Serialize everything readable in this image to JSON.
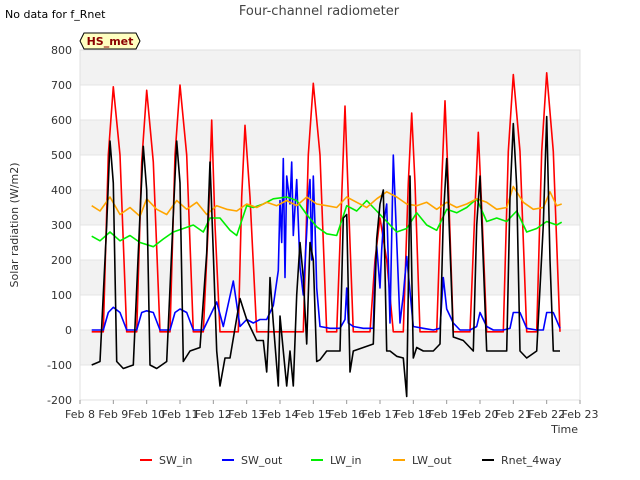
{
  "note": "No data for f_Rnet",
  "badge": "HS_met",
  "chart_data": {
    "type": "line",
    "title": "Four-channel radiometer",
    "xlabel": "Time",
    "ylabel": "Solar radiation (W/m2)",
    "ylim": [
      -200,
      800
    ],
    "xlim": [
      8,
      23
    ],
    "grid": "horizontal bands",
    "legend_position": "bottom",
    "y_ticks": [
      -200,
      -100,
      0,
      100,
      200,
      300,
      400,
      500,
      600,
      700,
      800
    ],
    "x_ticks": [
      {
        "value": 8,
        "label": "Feb 8"
      },
      {
        "value": 9,
        "label": "Feb 9"
      },
      {
        "value": 10,
        "label": "Feb 10"
      },
      {
        "value": 11,
        "label": "Feb 11"
      },
      {
        "value": 12,
        "label": "Feb 12"
      },
      {
        "value": 13,
        "label": "Feb 13"
      },
      {
        "value": 14,
        "label": "Feb 14"
      },
      {
        "value": 15,
        "label": "Feb 15"
      },
      {
        "value": 16,
        "label": "Feb 16"
      },
      {
        "value": 17,
        "label": "Feb 17"
      },
      {
        "value": 18,
        "label": "Feb 18"
      },
      {
        "value": 19,
        "label": "Feb 19"
      },
      {
        "value": 20,
        "label": "Feb 20"
      },
      {
        "value": 21,
        "label": "Feb 21"
      },
      {
        "value": 22,
        "label": "Feb 22"
      },
      {
        "value": 23,
        "label": "Feb 23"
      }
    ],
    "series": [
      {
        "name": "SW_in",
        "color": "#ff0000",
        "x": [
          8.35,
          8.7,
          8.85,
          9.0,
          9.2,
          9.4,
          9.7,
          9.85,
          10.0,
          10.2,
          10.4,
          10.7,
          10.85,
          11.0,
          11.2,
          11.4,
          11.7,
          11.85,
          11.95,
          12.05,
          12.2,
          12.4,
          12.75,
          12.85,
          12.95,
          13.1,
          13.3,
          13.6,
          13.8,
          14.0,
          14.2,
          14.4,
          14.7,
          14.85,
          15.0,
          15.2,
          15.4,
          15.7,
          15.85,
          15.95,
          16.05,
          16.2,
          16.4,
          16.7,
          16.85,
          17.0,
          17.2,
          17.4,
          17.7,
          17.85,
          17.95,
          18.05,
          18.2,
          18.4,
          18.7,
          18.85,
          18.95,
          19.05,
          19.2,
          19.4,
          19.7,
          19.85,
          19.95,
          20.05,
          20.2,
          20.4,
          20.7,
          20.85,
          21.0,
          21.2,
          21.4,
          21.7,
          21.85,
          22.0,
          22.2,
          22.4
        ],
        "y": [
          -5,
          -5,
          500,
          695,
          500,
          -5,
          -5,
          480,
          685,
          480,
          -5,
          -5,
          500,
          700,
          500,
          -5,
          -5,
          300,
          600,
          300,
          -5,
          -5,
          -5,
          380,
          585,
          380,
          -5,
          -5,
          -5,
          -5,
          -5,
          -5,
          -5,
          500,
          705,
          500,
          -5,
          -5,
          380,
          640,
          380,
          -5,
          -5,
          -5,
          200,
          320,
          200,
          -5,
          -5,
          420,
          620,
          420,
          -5,
          -5,
          -5,
          420,
          655,
          420,
          -5,
          -5,
          -5,
          350,
          565,
          350,
          -5,
          -5,
          -5,
          510,
          730,
          510,
          -5,
          -5,
          510,
          735,
          510,
          -5
        ]
      },
      {
        "name": "SW_out",
        "color": "#0000ff",
        "x": [
          8.35,
          8.7,
          8.85,
          9.0,
          9.2,
          9.4,
          9.7,
          9.85,
          10.0,
          10.2,
          10.4,
          10.7,
          10.85,
          11.0,
          11.2,
          11.4,
          11.7,
          11.9,
          12.1,
          12.3,
          12.6,
          12.8,
          13.0,
          13.2,
          13.4,
          13.6,
          13.8,
          13.95,
          14.0,
          14.05,
          14.1,
          14.15,
          14.2,
          14.3,
          14.35,
          14.4,
          14.5,
          14.6,
          14.7,
          14.8,
          14.85,
          14.9,
          14.95,
          15.0,
          15.05,
          15.1,
          15.2,
          15.5,
          15.8,
          15.95,
          16.0,
          16.05,
          16.2,
          16.5,
          16.8,
          16.85,
          16.9,
          17.0,
          17.05,
          17.1,
          17.2,
          17.3,
          17.4,
          17.6,
          17.7,
          17.8,
          18.0,
          18.3,
          18.6,
          18.8,
          18.9,
          19.0,
          19.2,
          19.4,
          19.7,
          19.9,
          20.0,
          20.2,
          20.4,
          20.7,
          20.9,
          21.0,
          21.2,
          21.4,
          21.7,
          21.9,
          22.0,
          22.2,
          22.4
        ],
        "y": [
          0,
          0,
          50,
          65,
          50,
          0,
          0,
          50,
          55,
          50,
          0,
          0,
          50,
          60,
          50,
          0,
          0,
          40,
          80,
          10,
          140,
          10,
          30,
          20,
          30,
          30,
          70,
          170,
          370,
          250,
          490,
          150,
          440,
          360,
          480,
          270,
          430,
          180,
          100,
          280,
          380,
          430,
          200,
          440,
          300,
          120,
          10,
          5,
          5,
          30,
          120,
          20,
          10,
          5,
          5,
          170,
          240,
          120,
          230,
          300,
          360,
          20,
          500,
          20,
          100,
          210,
          10,
          5,
          0,
          5,
          150,
          60,
          20,
          0,
          0,
          10,
          50,
          10,
          0,
          0,
          5,
          50,
          50,
          5,
          0,
          0,
          50,
          50,
          5
        ]
      },
      {
        "name": "LW_in",
        "color": "#00ee00",
        "x": [
          8.35,
          8.6,
          8.9,
          9.2,
          9.5,
          9.8,
          10.2,
          10.5,
          10.8,
          11.1,
          11.4,
          11.7,
          11.9,
          12.2,
          12.5,
          12.7,
          13.0,
          13.2,
          13.5,
          13.8,
          14.2,
          14.5,
          14.8,
          15.1,
          15.4,
          15.7,
          16.0,
          16.3,
          16.6,
          16.9,
          17.2,
          17.5,
          17.8,
          18.1,
          18.4,
          18.7,
          19.0,
          19.3,
          19.6,
          19.9,
          20.2,
          20.5,
          20.8,
          21.1,
          21.4,
          21.7,
          22.0,
          22.3,
          22.45
        ],
        "y": [
          268,
          255,
          280,
          255,
          270,
          250,
          238,
          260,
          280,
          290,
          300,
          280,
          320,
          320,
          285,
          270,
          355,
          350,
          360,
          375,
          380,
          370,
          330,
          295,
          275,
          270,
          355,
          340,
          370,
          340,
          310,
          280,
          290,
          335,
          300,
          285,
          345,
          335,
          350,
          375,
          310,
          320,
          310,
          340,
          280,
          290,
          310,
          300,
          308
        ]
      },
      {
        "name": "LW_out",
        "color": "#ffa500",
        "x": [
          8.35,
          8.6,
          8.9,
          9.2,
          9.5,
          9.8,
          10.0,
          10.3,
          10.6,
          10.9,
          11.2,
          11.5,
          11.8,
          12.1,
          12.4,
          12.7,
          13.0,
          13.3,
          13.6,
          13.9,
          14.2,
          14.5,
          14.8,
          15.1,
          15.4,
          15.7,
          16.0,
          16.3,
          16.6,
          16.9,
          17.2,
          17.5,
          17.8,
          18.1,
          18.4,
          18.7,
          19.0,
          19.3,
          19.6,
          19.9,
          20.2,
          20.5,
          20.8,
          21.0,
          21.3,
          21.6,
          21.9,
          22.1,
          22.3,
          22.45
        ],
        "y": [
          355,
          340,
          380,
          330,
          350,
          325,
          375,
          345,
          330,
          370,
          345,
          365,
          330,
          355,
          345,
          340,
          360,
          350,
          365,
          355,
          370,
          355,
          380,
          360,
          355,
          350,
          380,
          365,
          350,
          375,
          395,
          380,
          360,
          355,
          365,
          345,
          365,
          350,
          360,
          375,
          365,
          345,
          350,
          410,
          365,
          345,
          350,
          395,
          355,
          360
        ]
      },
      {
        "name": "Rnet_4way",
        "color": "#000000",
        "x": [
          8.35,
          8.6,
          8.8,
          8.9,
          9.0,
          9.1,
          9.3,
          9.6,
          9.8,
          9.9,
          10.0,
          10.1,
          10.3,
          10.6,
          10.8,
          10.9,
          11.0,
          11.1,
          11.3,
          11.6,
          11.8,
          11.9,
          12.0,
          12.1,
          12.2,
          12.35,
          12.5,
          12.8,
          12.9,
          13.0,
          13.1,
          13.3,
          13.5,
          13.6,
          13.65,
          13.7,
          13.8,
          13.95,
          14.0,
          14.1,
          14.2,
          14.3,
          14.4,
          14.5,
          14.6,
          14.7,
          14.8,
          14.9,
          15.0,
          15.1,
          15.2,
          15.4,
          15.6,
          15.8,
          15.9,
          16.0,
          16.1,
          16.2,
          16.5,
          16.8,
          16.9,
          17.0,
          17.1,
          17.2,
          17.3,
          17.5,
          17.7,
          17.8,
          17.9,
          18.0,
          18.1,
          18.3,
          18.6,
          18.8,
          18.9,
          19.0,
          19.2,
          19.5,
          19.8,
          19.9,
          20.0,
          20.2,
          20.5,
          20.8,
          20.9,
          21.0,
          21.1,
          21.2,
          21.4,
          21.7,
          21.9,
          22.0,
          22.1,
          22.2,
          22.4
        ],
        "y": [
          -100,
          -90,
          300,
          540,
          420,
          -90,
          -110,
          -100,
          330,
          525,
          400,
          -100,
          -110,
          -90,
          330,
          540,
          420,
          -90,
          -60,
          -50,
          220,
          480,
          220,
          -60,
          -160,
          -80,
          -80,
          90,
          60,
          30,
          10,
          -30,
          -30,
          -120,
          -20,
          150,
          20,
          -160,
          40,
          -60,
          -160,
          -60,
          -160,
          100,
          250,
          150,
          -40,
          250,
          200,
          -90,
          -85,
          -60,
          -60,
          -60,
          320,
          330,
          -120,
          -60,
          -50,
          -40,
          260,
          360,
          400,
          -60,
          -60,
          -75,
          -80,
          -190,
          440,
          -80,
          -50,
          -60,
          -60,
          -40,
          320,
          490,
          -20,
          -30,
          -60,
          300,
          440,
          -60,
          -60,
          -60,
          380,
          590,
          410,
          -60,
          -80,
          -60,
          300,
          610,
          200,
          -60,
          -60
        ]
      }
    ]
  }
}
